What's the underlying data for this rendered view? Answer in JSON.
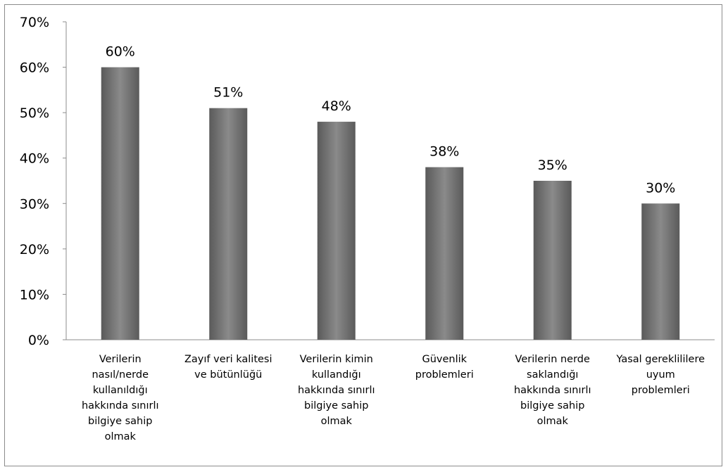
{
  "chart_data": {
    "type": "bar",
    "categories": [
      "Verilerin nasıl/nerde kullanıldığı hakkında sınırlı bilgiye sahip olmak",
      "Zayıf veri kalitesi ve bütünlüğü",
      "Verilerin kimin kullandığı hakkında sınırlı bilgiye sahip olmak",
      "Güvenlik problemleri",
      "Verilerin nerde saklandığı hakkında sınırlı bilgiye sahip olmak",
      "Yasal gereklililere uyum problemleri"
    ],
    "category_lines": [
      [
        "Verilerin",
        "nasıl/nerde",
        "kullanıldığı",
        "hakkında sınırlı",
        "bilgiye sahip",
        "olmak"
      ],
      [
        "Zayıf veri kalitesi",
        "ve bütünlüğü"
      ],
      [
        "Verilerin kimin",
        "kullandığı",
        "hakkında sınırlı",
        "bilgiye sahip",
        "olmak"
      ],
      [
        "Güvenlik",
        "problemleri"
      ],
      [
        "Verilerin nerde",
        "saklandığı",
        "hakkında sınırlı",
        "bilgiye sahip",
        "olmak"
      ],
      [
        "Yasal gereklililere",
        "uyum",
        "problemleri"
      ]
    ],
    "values": [
      60,
      51,
      48,
      38,
      35,
      30
    ],
    "value_labels": [
      "60%",
      "51%",
      "48%",
      "38%",
      "35%",
      "30%"
    ],
    "y_ticks": [
      0,
      10,
      20,
      30,
      40,
      50,
      60,
      70
    ],
    "y_tick_labels": [
      "0%",
      "10%",
      "20%",
      "30%",
      "40%",
      "50%",
      "60%",
      "70%"
    ],
    "ylim": [
      0,
      70
    ],
    "grid": false,
    "legend": "none",
    "bar_color_light": "#8a8a8a",
    "bar_color_dark": "#5a5a5a",
    "axis_color": "#8c8c8c"
  }
}
